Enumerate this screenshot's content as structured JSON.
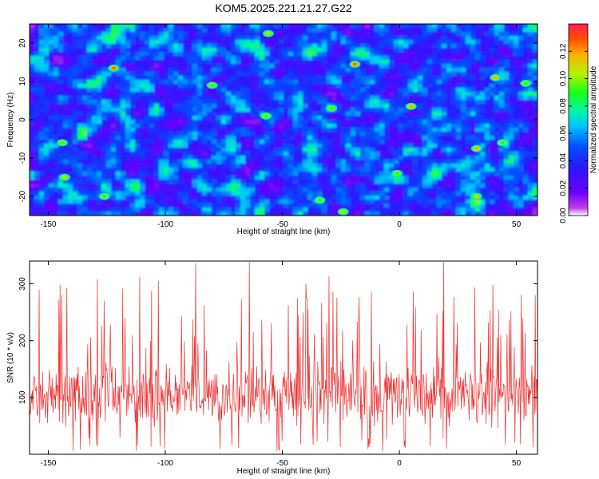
{
  "title": "KOM5.2025.221.21.27.G22",
  "chart_data": [
    {
      "type": "heatmap",
      "xlabel": "Height of straight line (km)",
      "ylabel": "Frequency (Hz)",
      "xlim": [
        -158,
        59
      ],
      "ylim": [
        -25,
        25
      ],
      "xticks": [
        -150,
        -100,
        -50,
        0,
        50
      ],
      "xtick_labels": [
        "-150",
        "-100",
        "-50",
        "0",
        "50"
      ],
      "yticks": [
        -20,
        -10,
        0,
        10,
        20
      ],
      "ytick_labels": [
        "-20",
        "-10",
        "0",
        "10",
        "20"
      ],
      "colorbar": {
        "label": "Normalized spectral amplitude",
        "range": [
          0,
          0.14
        ],
        "ticks": [
          0,
          0.02,
          0.04,
          0.06,
          0.08,
          0.1,
          0.12
        ],
        "tick_labels": [
          "0.00",
          "0.02",
          "0.04",
          "0.06",
          "0.08",
          "0.10",
          "0.12"
        ],
        "colors": [
          "#ffffff",
          "#c03ce8",
          "#6a00ff",
          "#2a18ff",
          "#0050ff",
          "#00c8ff",
          "#00f8a0",
          "#18ff18",
          "#b8f000",
          "#ffb000",
          "#ff5000",
          "#ff2050"
        ]
      },
      "peaks": [
        {
          "x": -122,
          "y": 13.5,
          "v": 0.13
        },
        {
          "x": -19,
          "y": 14.5,
          "v": 0.13
        },
        {
          "x": 41,
          "y": 11,
          "v": 0.12
        },
        {
          "x": 5,
          "y": 3.5,
          "v": 0.12
        },
        {
          "x": 33,
          "y": -7.5,
          "v": 0.12
        },
        {
          "x": 33,
          "y": -20,
          "v": 0.11
        },
        {
          "x": -143,
          "y": -15,
          "v": 0.11
        },
        {
          "x": -56,
          "y": 22.5,
          "v": 0.1
        },
        {
          "x": -80,
          "y": 9,
          "v": 0.09
        },
        {
          "x": -57,
          "y": 1,
          "v": 0.09
        },
        {
          "x": -24,
          "y": -24,
          "v": 0.1
        },
        {
          "x": -144,
          "y": -6,
          "v": 0.08
        },
        {
          "x": -1,
          "y": -14,
          "v": 0.08
        },
        {
          "x": -34,
          "y": -21,
          "v": 0.08
        },
        {
          "x": -29,
          "y": 3,
          "v": 0.08
        },
        {
          "x": 54,
          "y": 9.5,
          "v": 0.08
        },
        {
          "x": -126,
          "y": -20,
          "v": 0.07
        },
        {
          "x": 44,
          "y": -6,
          "v": 0.07
        }
      ]
    },
    {
      "type": "line",
      "xlabel": "Height of straight line (km)",
      "ylabel": "SNR (10 * v/v)",
      "xlim": [
        -158,
        59
      ],
      "ylim": [
        0,
        340
      ],
      "xticks": [
        -150,
        -100,
        -50,
        0,
        50
      ],
      "xtick_labels": [
        "-150",
        "-100",
        "-50",
        "0",
        "50"
      ],
      "yticks": [
        100,
        200,
        300
      ],
      "ytick_labels": [
        "100",
        "200",
        "300"
      ],
      "color": "#f03030",
      "mean": 105,
      "spread": 45,
      "n_points": 900,
      "spikes": [
        {
          "x": -87,
          "y": 336
        },
        {
          "x": -64,
          "y": 338
        },
        {
          "x": 19,
          "y": 338
        },
        {
          "x": -129,
          "y": 308
        },
        {
          "x": -111,
          "y": 312
        },
        {
          "x": -30,
          "y": 313
        },
        {
          "x": -145,
          "y": 298
        },
        {
          "x": -40,
          "y": 300
        },
        {
          "x": -103,
          "y": 305
        },
        {
          "x": 40,
          "y": 298
        },
        {
          "x": -12,
          "y": 285
        },
        {
          "x": 6,
          "y": 286
        },
        {
          "x": 58,
          "y": 280
        }
      ]
    }
  ]
}
